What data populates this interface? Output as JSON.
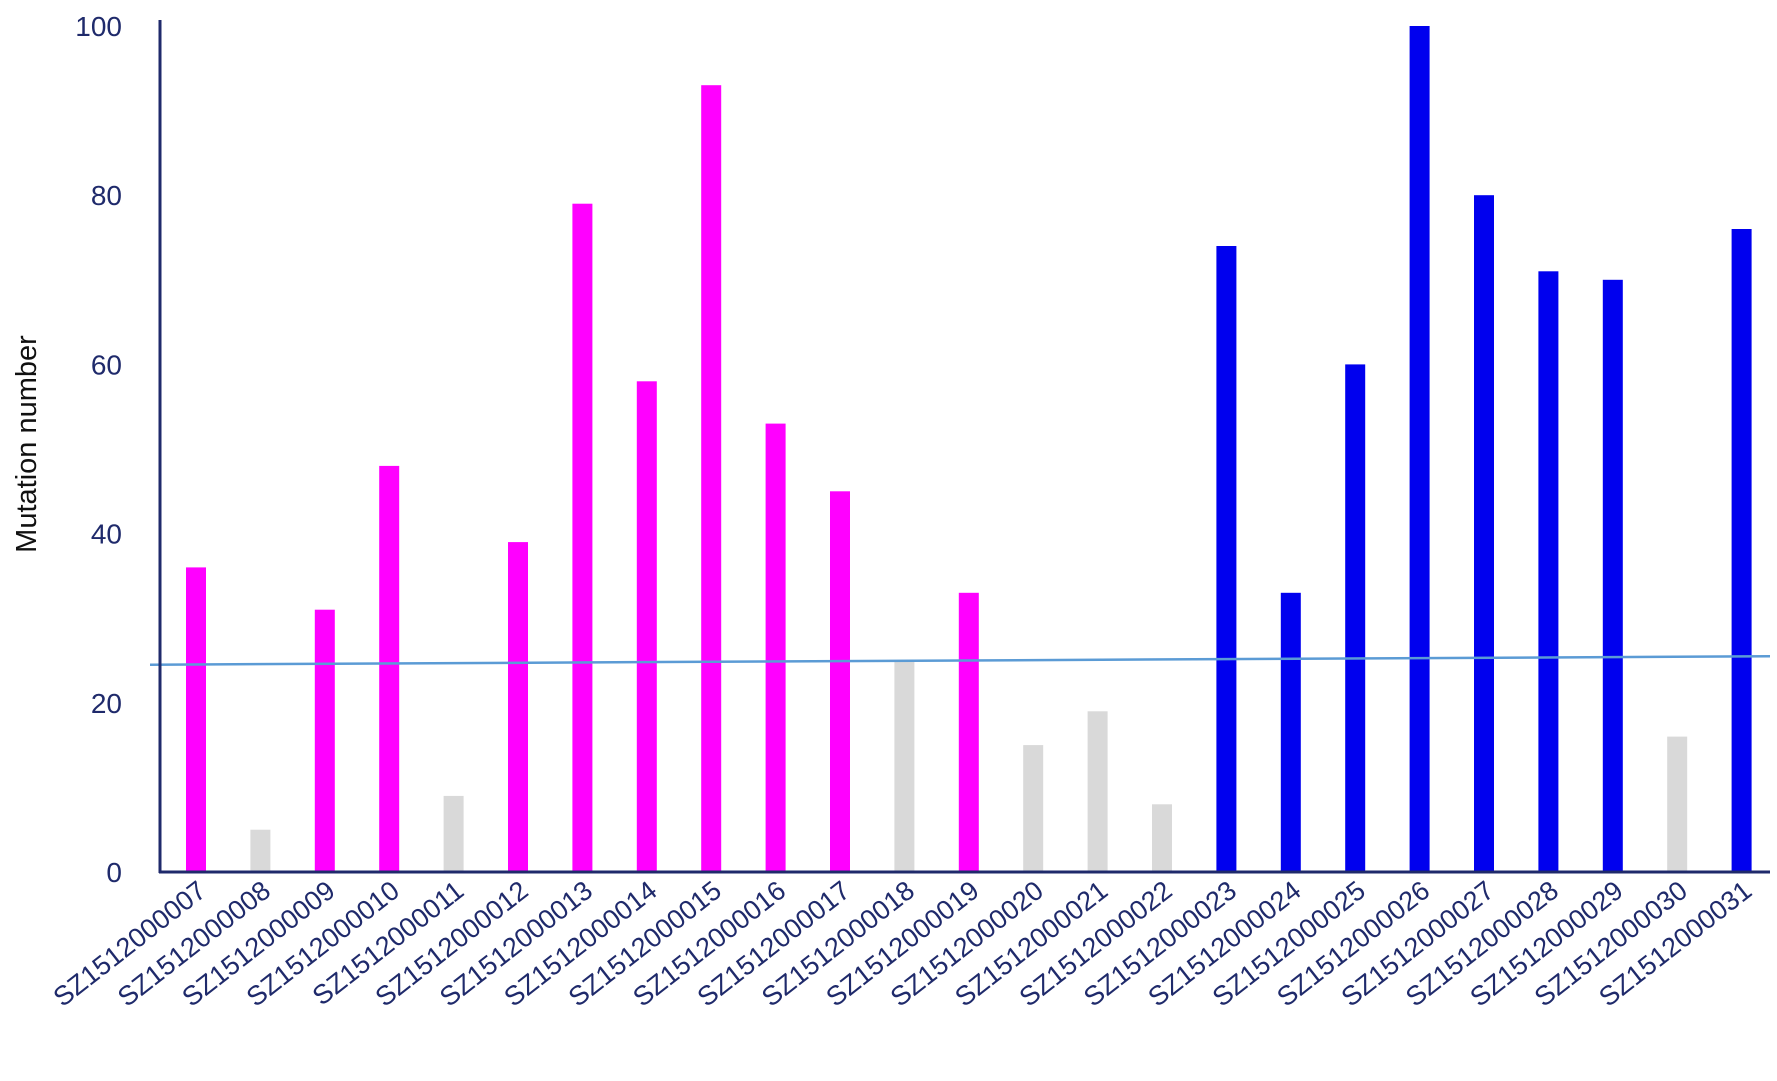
{
  "chart_data": {
    "type": "bar",
    "title": "",
    "xlabel": "",
    "ylabel": "Mutation number",
    "ylim": [
      0,
      100
    ],
    "yticks": [
      0,
      20,
      40,
      60,
      80,
      100
    ],
    "grid": false,
    "legend": "none",
    "categories": [
      "SZ1512000007",
      "SZ1512000008",
      "SZ1512000009",
      "SZ1512000010",
      "SZ1512000011",
      "SZ1512000012",
      "SZ1512000013",
      "SZ1512000014",
      "SZ1512000015",
      "SZ1512000016",
      "SZ1512000017",
      "SZ1512000018",
      "SZ1512000019",
      "SZ1512000020",
      "SZ1512000021",
      "SZ1512000022",
      "SZ1512000023",
      "SZ1512000024",
      "SZ1512000025",
      "SZ1512000026",
      "SZ1512000027",
      "SZ1512000028",
      "SZ1512000029",
      "SZ1512000030",
      "SZ1512000031"
    ],
    "values": [
      36,
      5,
      31,
      48,
      9,
      39,
      79,
      58,
      93,
      53,
      45,
      25,
      33,
      15,
      19,
      8,
      74,
      33,
      60,
      100,
      80,
      71,
      70,
      16,
      76
    ],
    "bar_colors": [
      "#ff00ff",
      "#d9d9d9",
      "#ff00ff",
      "#ff00ff",
      "#d9d9d9",
      "#ff00ff",
      "#ff00ff",
      "#ff00ff",
      "#ff00ff",
      "#ff00ff",
      "#ff00ff",
      "#d9d9d9",
      "#ff00ff",
      "#d9d9d9",
      "#d9d9d9",
      "#d9d9d9",
      "#0000ee",
      "#0000ee",
      "#0000ee",
      "#0000ee",
      "#0000ee",
      "#0000ee",
      "#0000ee",
      "#d9d9d9",
      "#0000ee"
    ],
    "reference_line": {
      "start": 24.5,
      "end": 25.5,
      "color": "#5b9bd5"
    },
    "colors": {
      "axis": "#1f2a6b",
      "magenta": "#ff00ff",
      "blue": "#0000ee",
      "gray": "#d9d9d9"
    }
  }
}
